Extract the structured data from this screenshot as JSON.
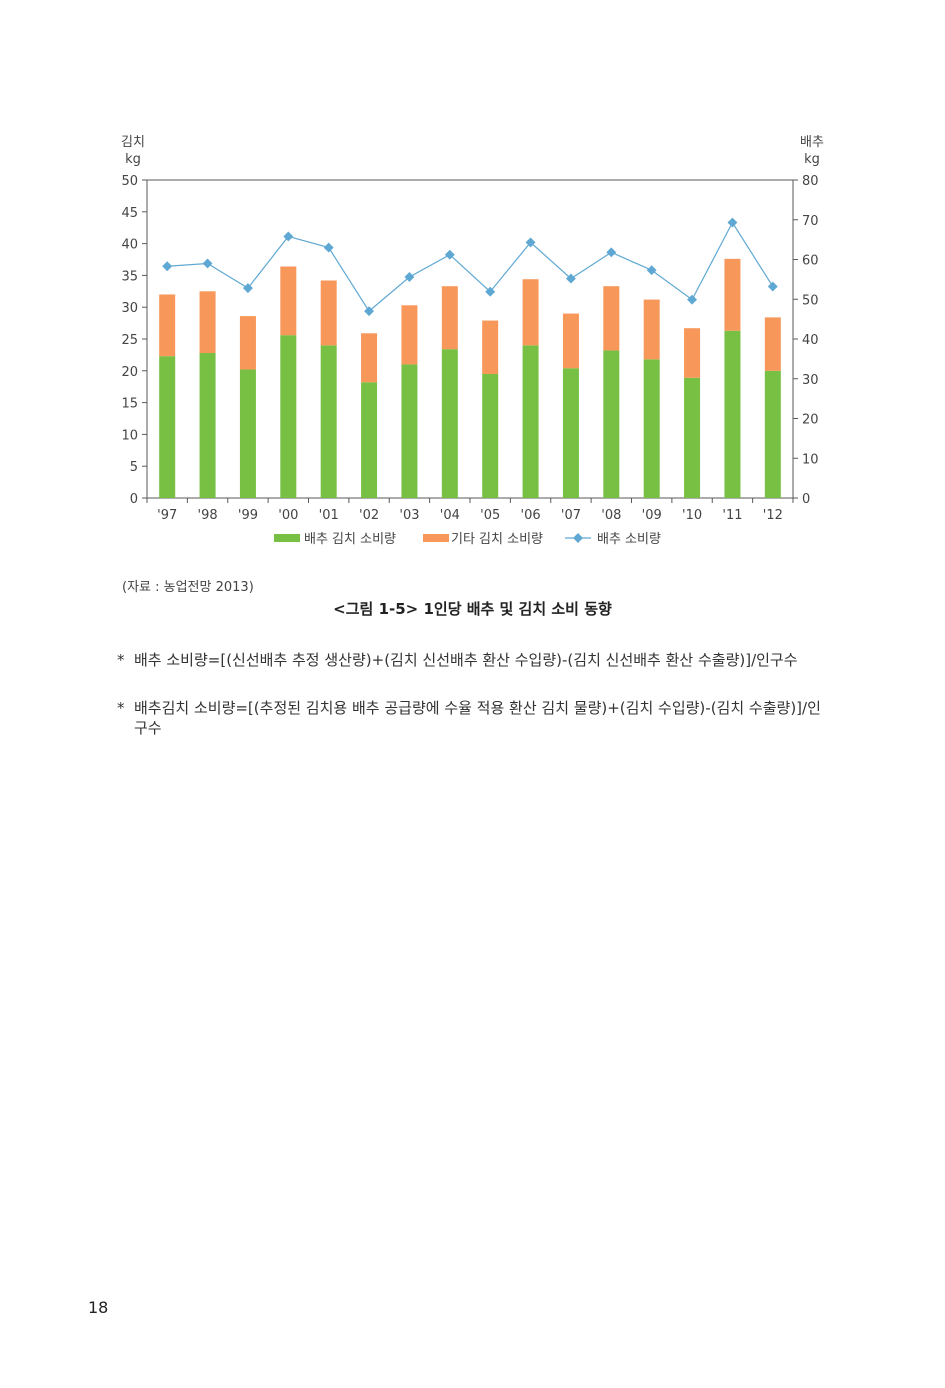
{
  "chart_data": {
    "type": "bar+line",
    "categories": [
      "'97",
      "'98",
      "'99",
      "'00",
      "'01",
      "'02",
      "'03",
      "'04",
      "'05",
      "'06",
      "'07",
      "'08",
      "'09",
      "'10",
      "'11",
      "'12"
    ],
    "left_axis": {
      "label_line1": "김치",
      "label_line2": "kg",
      "ylim": [
        0,
        50
      ],
      "ticks": [
        "0",
        "5",
        "10",
        "15",
        "20",
        "25",
        "30",
        "35",
        "40",
        "45",
        "50"
      ]
    },
    "right_axis": {
      "label_line1": "배추",
      "label_line2": "kg",
      "ylim": [
        0,
        80
      ],
      "ticks": [
        "0",
        "10",
        "20",
        "30",
        "40",
        "50",
        "60",
        "70",
        "80"
      ]
    },
    "series": [
      {
        "name": "배추 김치 소비량",
        "kind": "stacked-bar",
        "axis": "left",
        "color": "#77c043",
        "values": [
          22.3,
          22.8,
          20.2,
          25.6,
          24.0,
          18.2,
          21.0,
          23.4,
          19.5,
          24.0,
          20.4,
          23.2,
          21.8,
          18.9,
          26.3,
          20.0
        ]
      },
      {
        "name": "기타 김치 소비량",
        "kind": "stacked-bar",
        "axis": "left",
        "color": "#f7975a",
        "values": [
          9.7,
          9.7,
          8.4,
          10.8,
          10.2,
          7.7,
          9.3,
          9.9,
          8.4,
          10.4,
          8.6,
          10.1,
          9.4,
          7.8,
          11.3,
          8.4
        ]
      },
      {
        "name": "배추 소비량",
        "kind": "line",
        "axis": "right",
        "color": "#5fa8d3",
        "values": [
          58.3,
          59.0,
          52.8,
          65.8,
          63.0,
          47.0,
          55.6,
          61.2,
          51.9,
          64.3,
          55.2,
          61.8,
          57.3,
          49.9,
          69.3,
          53.2
        ]
      }
    ],
    "grid": false,
    "legend_position": "bottom"
  },
  "source_text": "(자료 : 농업전망 2013)",
  "caption": "<그림 1-5> 1인당 배추 및 김치 소비 동향",
  "notes": [
    {
      "mark": "*",
      "text": "배추 소비량=[(신선배추 추정 생산량)+(김치 신선배추 환산 수입량)-(김치 신선배추 환산 수출량)]/인구수"
    },
    {
      "mark": "*",
      "text": "배추김치 소비량=[(추정된 김치용 배추 공급량에 수율 적용 환산 김치 물량)+(김치 수입량)-(김치 수출량)]/인구수"
    }
  ],
  "page_number": "18"
}
